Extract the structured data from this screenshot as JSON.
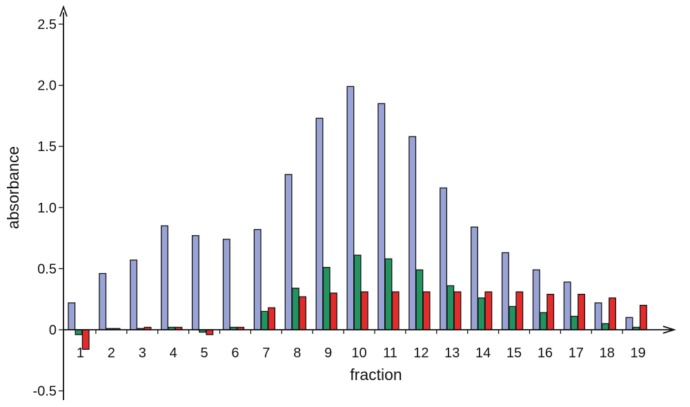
{
  "chart_data": {
    "type": "bar",
    "title": "",
    "xlabel": "fraction",
    "ylabel": "absorbance",
    "categories": [
      "1",
      "2",
      "3",
      "4",
      "5",
      "6",
      "7",
      "8",
      "9",
      "10",
      "11",
      "12",
      "13",
      "14",
      "15",
      "16",
      "17",
      "18",
      "19"
    ],
    "series": [
      {
        "color": "#9aa3d6",
        "values": [
          0.22,
          0.46,
          0.57,
          0.85,
          0.77,
          0.74,
          0.82,
          1.27,
          1.73,
          1.99,
          1.85,
          1.58,
          1.16,
          0.84,
          0.63,
          0.49,
          0.39,
          0.22,
          0.1
        ]
      },
      {
        "color": "#23935f",
        "values": [
          -0.04,
          0.01,
          0.01,
          0.02,
          -0.02,
          0.02,
          0.15,
          0.34,
          0.51,
          0.61,
          0.58,
          0.49,
          0.36,
          0.26,
          0.19,
          0.14,
          0.11,
          0.05,
          0.02
        ]
      },
      {
        "color": "#e32b2b",
        "values": [
          -0.16,
          0.01,
          0.02,
          0.02,
          -0.04,
          0.02,
          0.18,
          0.27,
          0.3,
          0.31,
          0.31,
          0.31,
          0.31,
          0.31,
          0.31,
          0.29,
          0.29,
          0.26,
          0.2
        ]
      }
    ],
    "y_ticks": [
      "2.5",
      "2.0",
      "1.5",
      "1.0",
      "0.5",
      "0",
      "-0.5"
    ],
    "y_tick_values": [
      2.5,
      2.0,
      1.5,
      1.0,
      0.5,
      0,
      -0.5
    ],
    "ylim": [
      -0.5,
      2.5
    ],
    "grid": false,
    "legend": "none"
  }
}
